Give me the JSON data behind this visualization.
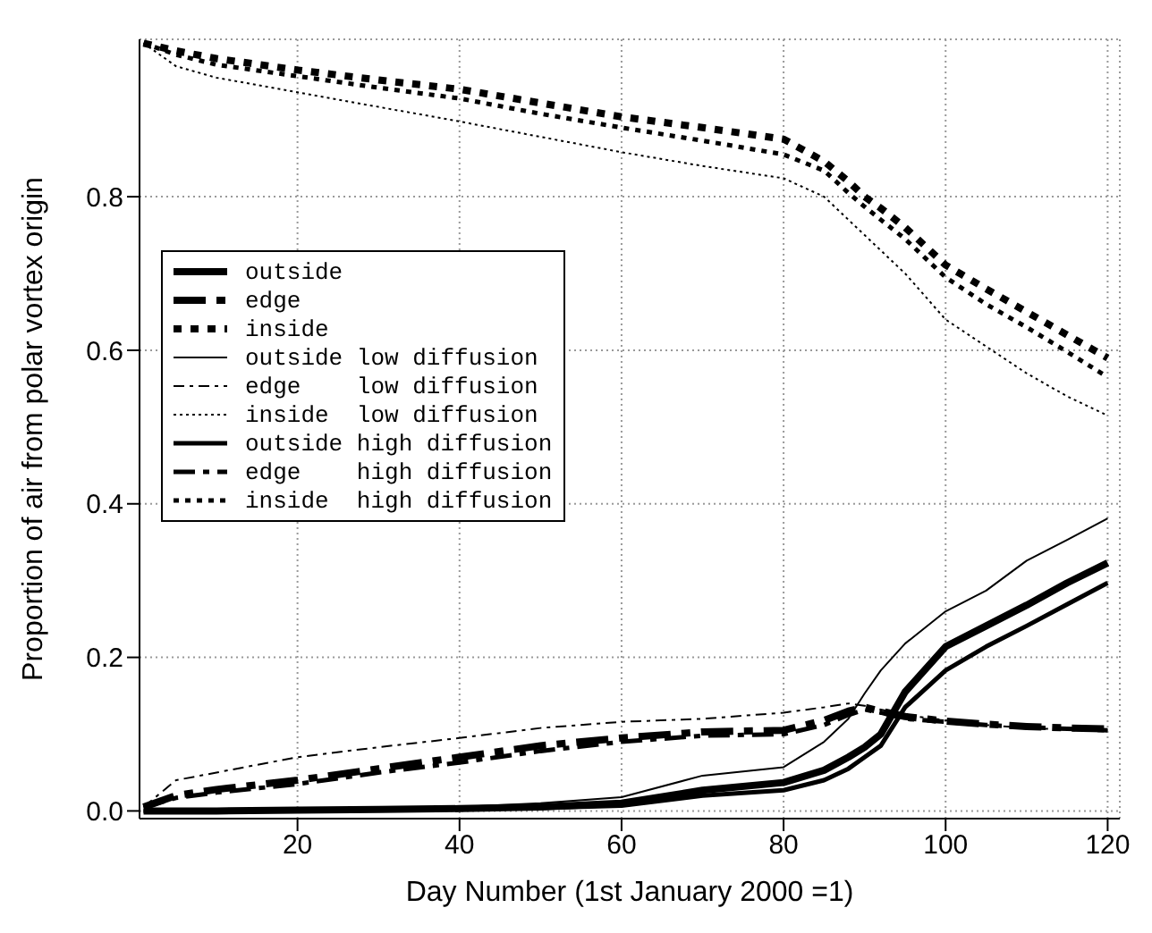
{
  "chart_data": {
    "type": "line",
    "xlabel": "Day Number (1st January 2000 =1)",
    "ylabel": "Proportion of air from polar vortex origin",
    "x": [
      1,
      5,
      10,
      20,
      30,
      40,
      50,
      60,
      70,
      80,
      85,
      88,
      90,
      92,
      95,
      100,
      105,
      110,
      115,
      120
    ],
    "xlim": [
      0.5,
      121.5
    ],
    "xticks": [
      20,
      40,
      60,
      80,
      100,
      120
    ],
    "ylim": [
      -0.01,
      1.005
    ],
    "yticks": [
      {
        "value": 0,
        "label": "0.0"
      },
      {
        "value": 0.2,
        "label": "0.2"
      },
      {
        "value": 0.4,
        "label": "0.4"
      },
      {
        "value": 0.6,
        "label": "0.6"
      },
      0.8
    ],
    "grid": true,
    "legend": "left",
    "marker": "none",
    "series": [
      {
        "name": "outside",
        "color": "#000000",
        "line_style": "solid",
        "values": [
          0,
          0,
          0,
          0.001,
          0.002,
          0.003,
          0.005,
          0.01,
          0.027,
          0.037,
          0.053,
          0.07,
          0.083,
          0.1,
          0.155,
          0.214,
          0.241,
          0.268,
          0.297,
          0.323
        ]
      },
      {
        "name": "edge",
        "color": "#000000",
        "line_style": "dashed",
        "values": [
          0.005,
          0.02,
          0.028,
          0.04,
          0.055,
          0.07,
          0.085,
          0.095,
          0.103,
          0.105,
          0.118,
          0.13,
          0.135,
          0.13,
          0.123,
          0.117,
          0.113,
          0.11,
          0.108,
          0.107
        ]
      },
      {
        "name": "inside",
        "color": "#000000",
        "line_style": "dotted",
        "values": [
          1.0,
          0.99,
          0.98,
          0.965,
          0.952,
          0.94,
          0.922,
          0.904,
          0.89,
          0.875,
          0.846,
          0.82,
          0.8,
          0.785,
          0.76,
          0.711,
          0.68,
          0.65,
          0.62,
          0.59
        ]
      },
      {
        "name": "outside low diffusion",
        "color": "#000000",
        "line_style": "solid",
        "values": [
          0,
          0,
          0,
          0.001,
          0.003,
          0.005,
          0.01,
          0.018,
          0.046,
          0.057,
          0.09,
          0.12,
          0.153,
          0.183,
          0.218,
          0.26,
          0.287,
          0.326,
          0.353,
          0.381
        ]
      },
      {
        "name": "edge    low diffusion",
        "color": "#000000",
        "line_style": "dashed",
        "values": [
          0.005,
          0.04,
          0.05,
          0.07,
          0.083,
          0.095,
          0.108,
          0.116,
          0.12,
          0.128,
          0.135,
          0.14,
          0.137,
          0.132,
          0.125,
          0.118,
          0.112,
          0.108,
          0.106,
          0.105
        ]
      },
      {
        "name": "inside  low diffusion",
        "color": "#000000",
        "line_style": "dotted",
        "values": [
          1.0,
          0.97,
          0.955,
          0.936,
          0.917,
          0.898,
          0.878,
          0.858,
          0.84,
          0.824,
          0.8,
          0.77,
          0.75,
          0.73,
          0.7,
          0.64,
          0.605,
          0.57,
          0.54,
          0.515
        ]
      },
      {
        "name": "outside high diffusion",
        "color": "#000000",
        "line_style": "solid",
        "values": [
          0,
          0,
          0,
          0.001,
          0.002,
          0.003,
          0.004,
          0.007,
          0.02,
          0.027,
          0.04,
          0.055,
          0.07,
          0.085,
          0.135,
          0.183,
          0.214,
          0.241,
          0.269,
          0.297
        ]
      },
      {
        "name": "edge    high diffusion",
        "color": "#000000",
        "line_style": "dashed",
        "values": [
          0.005,
          0.017,
          0.024,
          0.035,
          0.05,
          0.063,
          0.078,
          0.09,
          0.098,
          0.1,
          0.112,
          0.125,
          0.132,
          0.128,
          0.12,
          0.116,
          0.112,
          0.109,
          0.107,
          0.105
        ]
      },
      {
        "name": "inside  high diffusion",
        "color": "#000000",
        "line_style": "dotted",
        "values": [
          1.0,
          0.985,
          0.972,
          0.957,
          0.942,
          0.928,
          0.908,
          0.89,
          0.873,
          0.855,
          0.834,
          0.805,
          0.787,
          0.77,
          0.745,
          0.695,
          0.66,
          0.63,
          0.598,
          0.565
        ]
      }
    ]
  }
}
